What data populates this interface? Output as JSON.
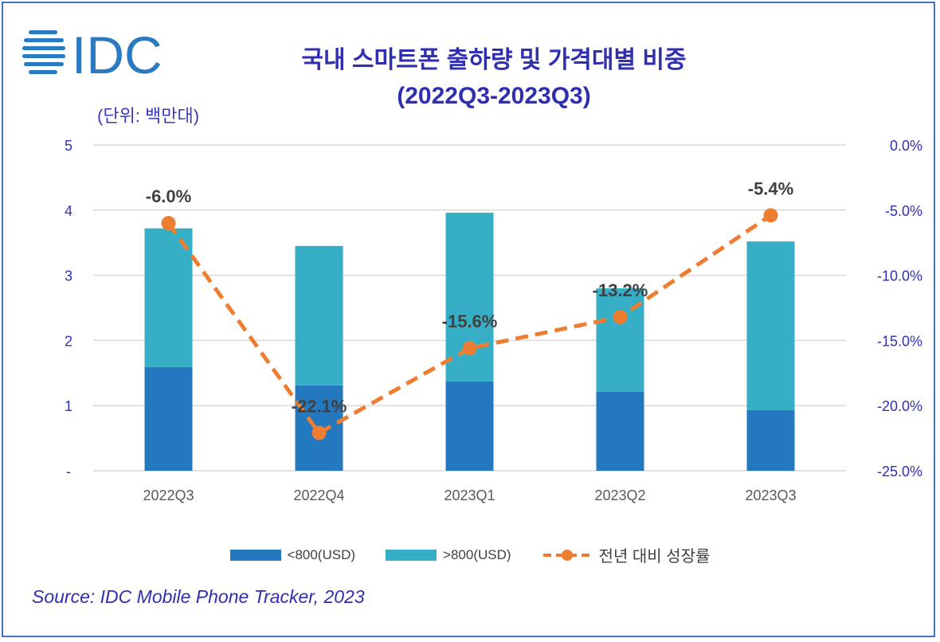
{
  "logo_text": "IDC",
  "title_line1": "국내 스마트폰 출하량 및 가격대별 비중",
  "title_line2": "(2022Q3-2023Q3)",
  "unit_label": "(단위: 백만대)",
  "source": "Source: IDC Mobile Phone Tracker, 2023",
  "colors": {
    "low": "#2478bd",
    "high": "#35aec6",
    "line": "#ed7d31",
    "axis_text": "#3030b8",
    "brand": "#2a7ac2"
  },
  "chart_data": {
    "type": "bar+line",
    "categories": [
      "2022Q3",
      "2022Q4",
      "2023Q1",
      "2023Q2",
      "2023Q3"
    ],
    "series": [
      {
        "name": "<800(USD)",
        "type": "stacked-bar",
        "axis": "left",
        "values": [
          1.59,
          1.31,
          1.37,
          1.21,
          0.93
        ]
      },
      {
        "name": ">800(USD)",
        "type": "stacked-bar",
        "axis": "left",
        "values": [
          2.13,
          2.14,
          2.59,
          1.59,
          2.59
        ]
      },
      {
        "name": "전년 대비 성장률",
        "type": "line",
        "axis": "right",
        "values": [
          -6.0,
          -22.1,
          -15.6,
          -13.2,
          -5.4
        ],
        "data_labels": [
          "-6.0%",
          "-22.1%",
          "-15.6%",
          "-13.2%",
          "-5.4%"
        ]
      }
    ],
    "left_axis": {
      "ylim": [
        0,
        5
      ],
      "ticks": [
        "-",
        "1",
        "2",
        "3",
        "4",
        "5"
      ]
    },
    "right_axis": {
      "ylim": [
        -25,
        0
      ],
      "ticks": [
        "-25.0%",
        "-20.0%",
        "-15.0%",
        "-10.0%",
        "-5.0%",
        "0.0%"
      ]
    },
    "grid": true,
    "legend": "bottom"
  }
}
